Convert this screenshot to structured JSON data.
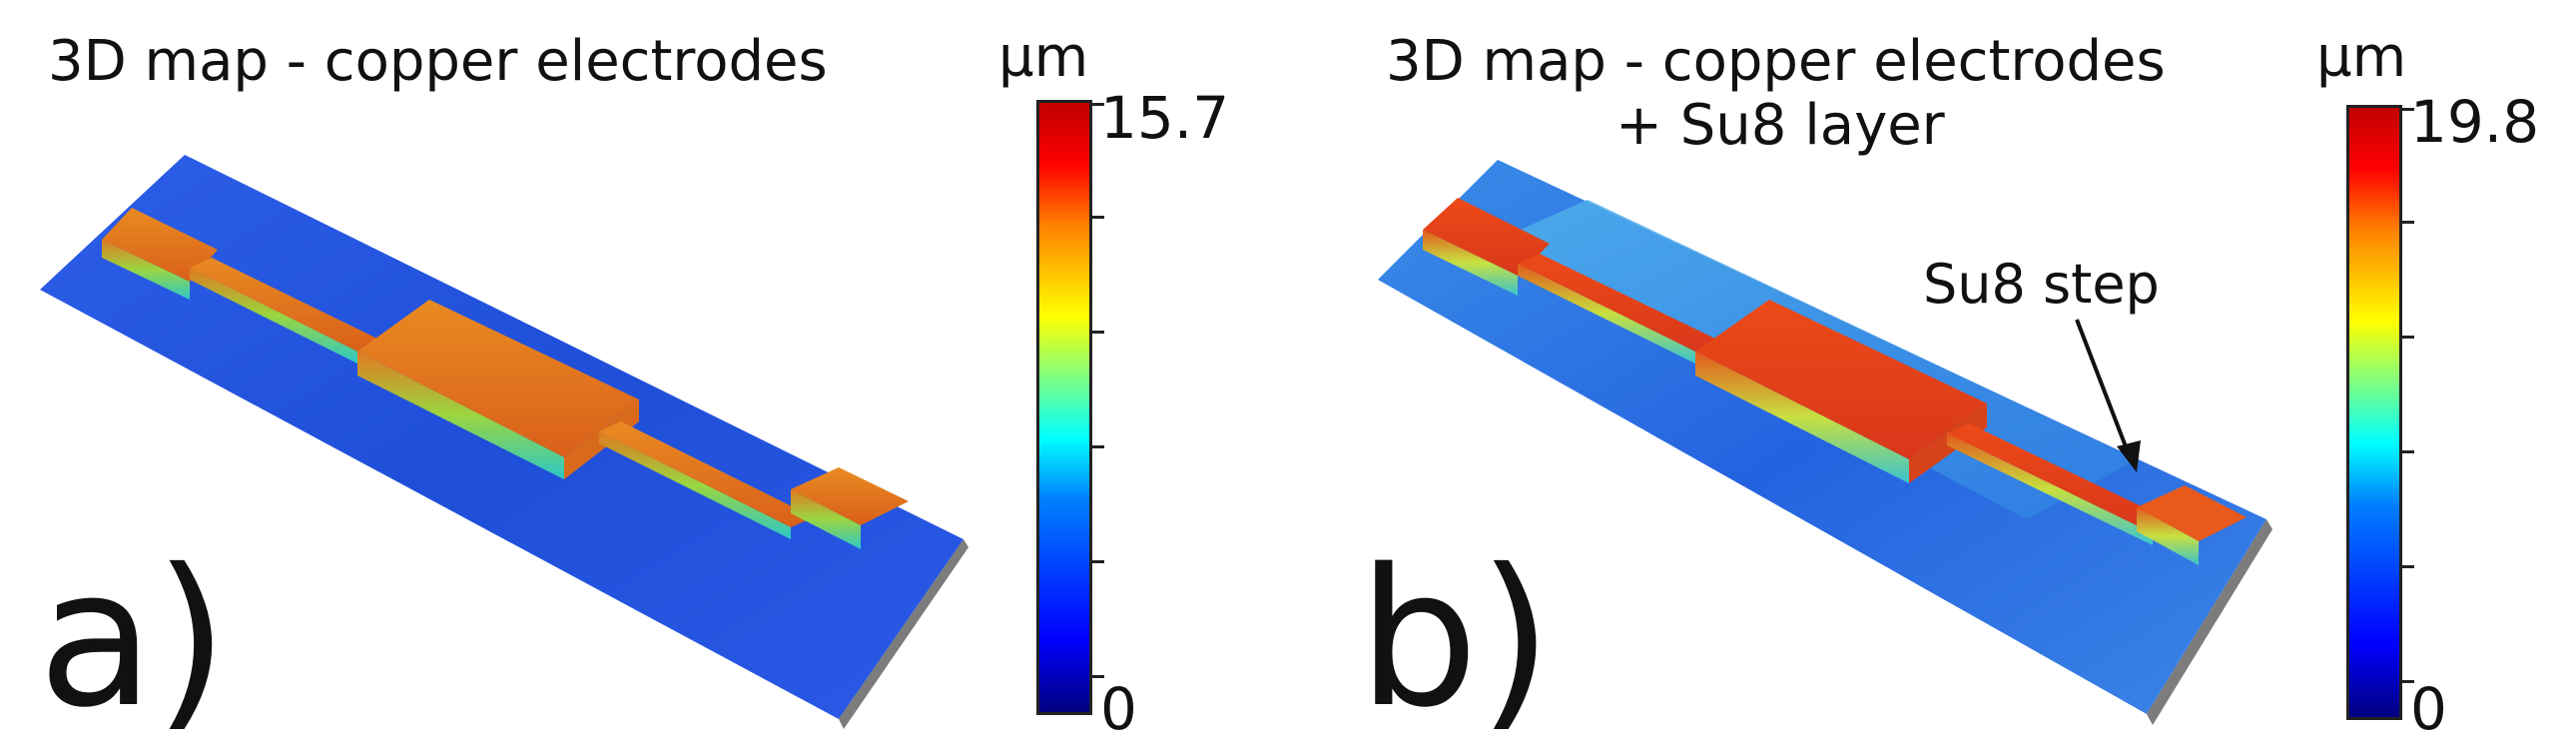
{
  "panels": [
    {
      "letter": "a)",
      "title_lines": [
        "3D map - copper electrodes"
      ],
      "colorbar": {
        "unit": "µm",
        "max_label": "15.7",
        "min_label": "0"
      }
    },
    {
      "letter": "b)",
      "title_lines": [
        "3D map - copper electrodes",
        "+ Su8 layer"
      ],
      "colorbar": {
        "unit": "µm",
        "max_label": "19.8",
        "min_label": "0"
      },
      "annotation": "Su8 step"
    }
  ],
  "colors": {
    "substrate_blue": "#2a5ce6",
    "electrode_orange": "#e0781e",
    "electrode_red": "#e83a14",
    "su8_cyan": "#3aa7e8",
    "colormap_low": "#00007f",
    "colormap_high": "#c00000"
  }
}
